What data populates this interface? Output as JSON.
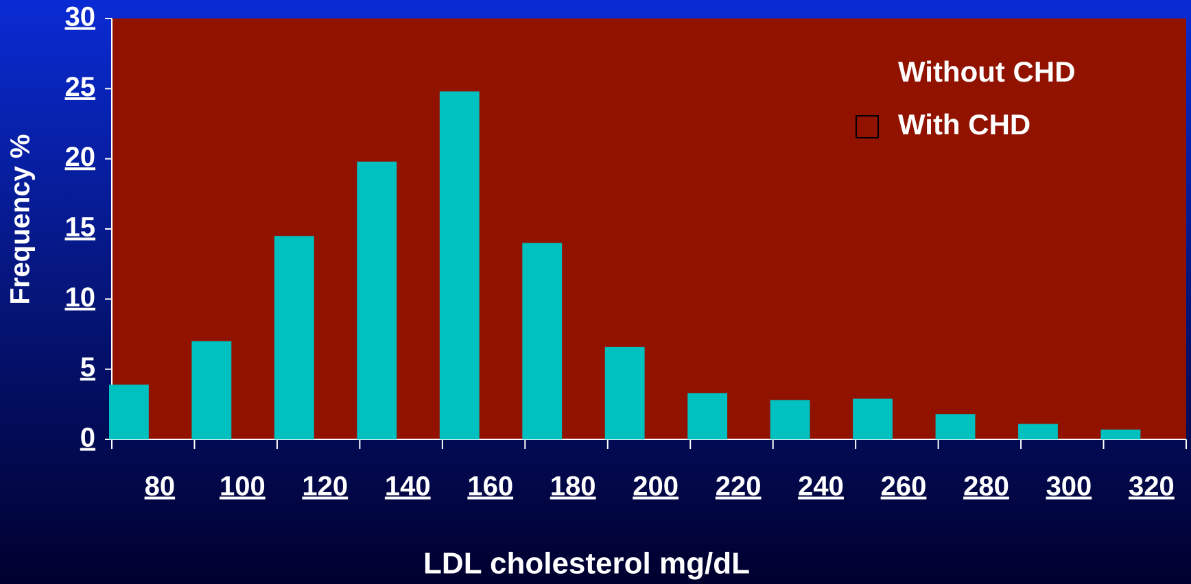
{
  "chart_data": {
    "type": "bar",
    "x_label": "LDL cholesterol mg/dL",
    "y_label": "Frequency %",
    "categories": [
      "80",
      "100",
      "120",
      "140",
      "160",
      "180",
      "200",
      "220",
      "240",
      "260",
      "280",
      "300",
      "320"
    ],
    "series": [
      {
        "name": "Without CHD",
        "color": "#00c0c0",
        "values": [
          3.9,
          7.0,
          14.5,
          19.8,
          24.8,
          14.0,
          6.6,
          3.3,
          2.8,
          2.9,
          1.8,
          1.1,
          0.7
        ]
      },
      {
        "name": "With CHD",
        "color": "#921200",
        "values": [
          null,
          null,
          null,
          null,
          null,
          null,
          null,
          null,
          null,
          null,
          null,
          null,
          null
        ]
      }
    ],
    "ylim": [
      0,
      30
    ],
    "yticks": [
      0,
      5,
      10,
      15,
      20,
      25,
      30
    ],
    "plot_color": "#921200",
    "grid": false
  }
}
